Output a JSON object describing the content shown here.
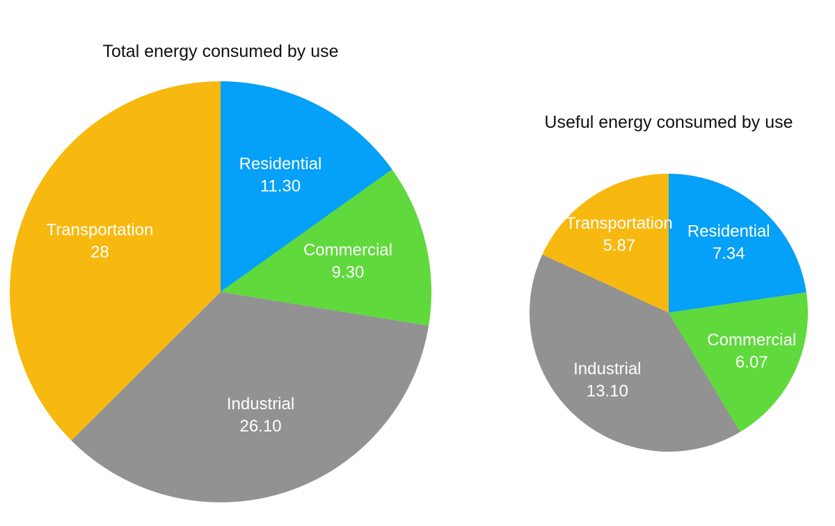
{
  "chart_data": [
    {
      "type": "pie",
      "title": "Total energy consumed by use",
      "categories": [
        "Residential",
        "Commercial",
        "Industrial",
        "Transportation"
      ],
      "values": [
        11.3,
        9.3,
        26.1,
        28
      ],
      "value_labels": [
        "11.30",
        "9.30",
        "26.10",
        "28"
      ],
      "colors": [
        "#05a0f8",
        "#5fd93c",
        "#929292",
        "#f7b80f"
      ]
    },
    {
      "type": "pie",
      "title": "Useful energy consumed by use",
      "categories": [
        "Residential",
        "Commercial",
        "Industrial",
        "Transportation"
      ],
      "values": [
        7.34,
        6.07,
        13.1,
        5.87
      ],
      "value_labels": [
        "7.34",
        "6.07",
        "13.10",
        "5.87"
      ],
      "colors": [
        "#05a0f8",
        "#5fd93c",
        "#929292",
        "#f7b80f"
      ]
    }
  ]
}
